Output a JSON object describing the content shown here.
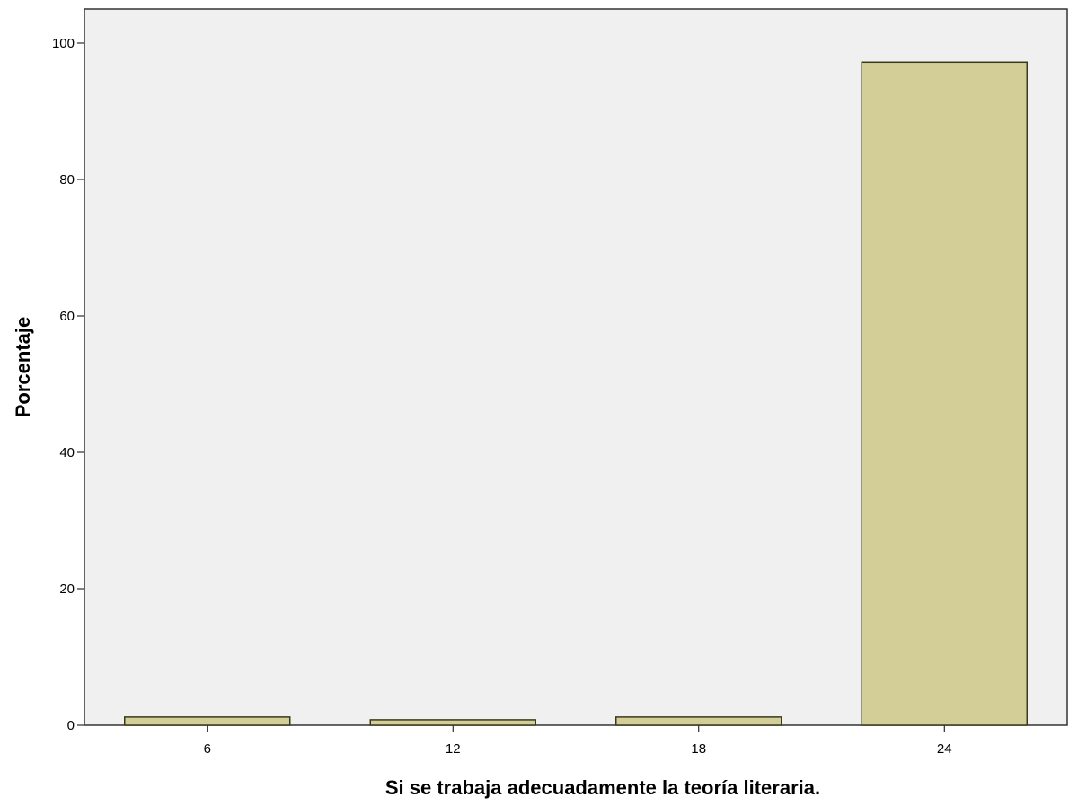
{
  "chart_data": {
    "type": "bar",
    "title": "",
    "xlabel": "Si se trabaja adecuadamente la teoría literaria.",
    "ylabel": "Porcentaje",
    "categories": [
      "6",
      "12",
      "18",
      "24"
    ],
    "values": [
      1.2,
      0.8,
      1.2,
      97.2
    ],
    "ylim": [
      0,
      105
    ],
    "yticks": [
      0,
      20,
      40,
      60,
      80,
      100
    ],
    "bar_color": "#d3cd97",
    "bar_edge_color": "#3a3a1a",
    "plot_background": "#f0f0f0",
    "grid": false,
    "legend": "none"
  }
}
